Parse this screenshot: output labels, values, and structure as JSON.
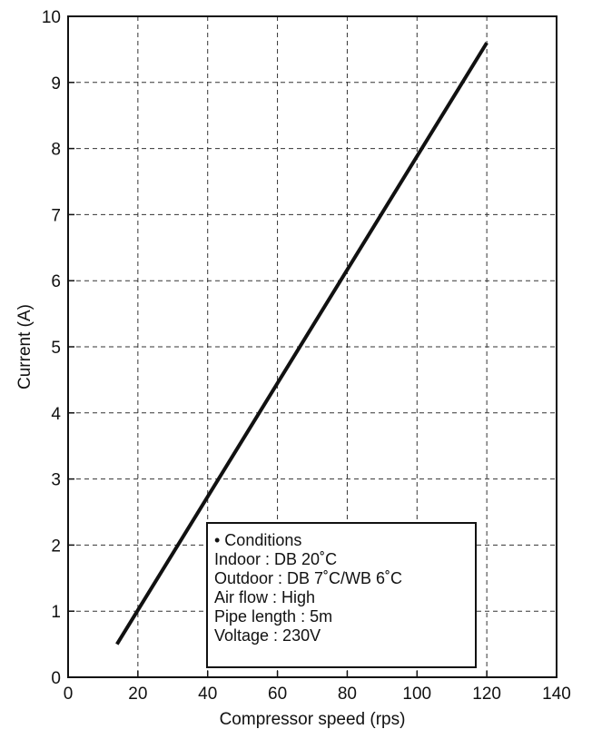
{
  "chart_data": {
    "type": "line",
    "xlabel": "Compressor speed (rps)",
    "ylabel": "Current (A)",
    "xlim": [
      0,
      140
    ],
    "ylim": [
      0,
      10
    ],
    "x_ticks": [
      0,
      20,
      40,
      60,
      80,
      100,
      120,
      140
    ],
    "y_ticks": [
      0,
      1,
      2,
      3,
      4,
      5,
      6,
      7,
      8,
      9,
      10
    ],
    "grid": true,
    "grid_style": "dashed",
    "series": [
      {
        "x": [
          14,
          120
        ],
        "y": [
          0.5,
          9.6
        ]
      }
    ],
    "line_color": "#111111",
    "annotation": {
      "placement": "bottom-center",
      "lines": [
        "• Conditions",
        "Indoor : DB 20˚C",
        "Outdoor : DB 7˚C/WB 6˚C",
        "Air flow : High",
        "Pipe length : 5m",
        "Voltage : 230V"
      ]
    }
  }
}
